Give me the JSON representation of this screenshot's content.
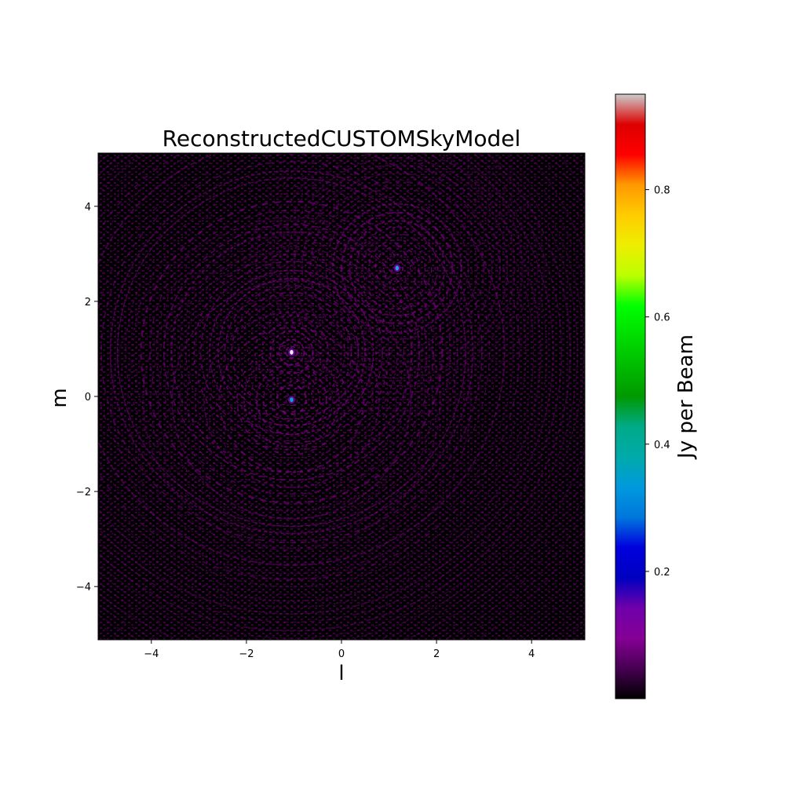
{
  "chart_data": {
    "type": "heatmap",
    "title": "ReconstructedCUSTOMSkyModel",
    "xlabel": "l",
    "ylabel": "m",
    "xlim": [
      -5.12,
      5.12
    ],
    "ylim": [
      -5.12,
      5.12
    ],
    "xticks": [
      -4,
      -2,
      0,
      2,
      4
    ],
    "xtick_labels": [
      "−4",
      "−2",
      "0",
      "2",
      "4"
    ],
    "yticks": [
      -4,
      -2,
      0,
      2,
      4
    ],
    "ytick_labels": [
      "−4",
      "−2",
      "0",
      "2",
      "4"
    ],
    "grid": false,
    "colormap": "nipy_spectral",
    "colorbar": {
      "label": "Jy per Beam",
      "vmin": 0.0,
      "vmax": 0.95,
      "ticks": [
        0.2,
        0.4,
        0.6,
        0.8
      ],
      "tick_labels": [
        "0.2",
        "0.4",
        "0.6",
        "0.8"
      ]
    },
    "sources": [
      {
        "l": -1.05,
        "m": 0.93,
        "peak": 0.95
      },
      {
        "l": 1.17,
        "m": 2.7,
        "peak": 0.3
      },
      {
        "l": -1.05,
        "m": -0.07,
        "peak": 0.35
      }
    ],
    "background": "sidelobe noise rings, approx 0.0-0.1 Jy per Beam"
  },
  "colors": {
    "plot_background": "#000000",
    "noise": "#7a007f",
    "frame": "#000000"
  }
}
